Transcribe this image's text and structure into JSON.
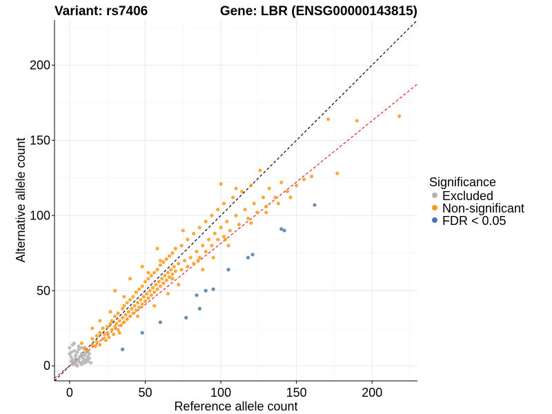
{
  "chart_data": {
    "type": "scatter",
    "title_left": "Variant: rs7406",
    "title_right": "Gene: LBR (ENSG00000143815)",
    "xlabel": "Reference allele count",
    "ylabel": "Alternative allele count",
    "xlim": [
      -10,
      230
    ],
    "ylim": [
      -10,
      230
    ],
    "xticks": [
      0,
      50,
      100,
      150,
      200
    ],
    "yticks": [
      0,
      50,
      100,
      150,
      200
    ],
    "grid": true,
    "reference_lines": [
      {
        "name": "identity",
        "slope": 1.0,
        "intercept": 0,
        "color": "#000000",
        "style": "dashed"
      },
      {
        "name": "fitted",
        "slope": 0.815,
        "intercept": 0,
        "color": "#e41a1c",
        "style": "dashed"
      }
    ],
    "legend": {
      "title": "Significance",
      "position": "right",
      "entries": [
        {
          "label": "Excluded",
          "color": "#b3b3b3"
        },
        {
          "label": "Non-significant",
          "color": "#ff9a1a"
        },
        {
          "label": "FDR < 0.05",
          "color": "#4a78a8"
        }
      ]
    },
    "series": [
      {
        "name": "Excluded",
        "color": "#b3b3b3",
        "points": [
          [
            0,
            8
          ],
          [
            0,
            12
          ],
          [
            1,
            3
          ],
          [
            1,
            6
          ],
          [
            2,
            1
          ],
          [
            2,
            4
          ],
          [
            3,
            10
          ],
          [
            3,
            2
          ],
          [
            4,
            5
          ],
          [
            4,
            7
          ],
          [
            5,
            0
          ],
          [
            5,
            3
          ],
          [
            5,
            9
          ],
          [
            6,
            4
          ],
          [
            6,
            11
          ],
          [
            7,
            2
          ],
          [
            7,
            6
          ],
          [
            8,
            8
          ],
          [
            8,
            1
          ],
          [
            9,
            3
          ],
          [
            9,
            5
          ],
          [
            10,
            7
          ],
          [
            10,
            2
          ],
          [
            11,
            4
          ],
          [
            11,
            9
          ],
          [
            12,
            6
          ],
          [
            12,
            3
          ],
          [
            13,
            5
          ],
          [
            14,
            2
          ],
          [
            3,
            15
          ],
          [
            6,
            13
          ],
          [
            2,
            14
          ],
          [
            8,
            12
          ],
          [
            10,
            11
          ],
          [
            4,
            1
          ],
          [
            13,
            8
          ],
          [
            1,
            9
          ],
          [
            12,
            10
          ]
        ]
      },
      {
        "name": "Non-significant",
        "color": "#ff9a1a",
        "points": [
          [
            10,
            12
          ],
          [
            12,
            10
          ],
          [
            15,
            14
          ],
          [
            15,
            18
          ],
          [
            17,
            13
          ],
          [
            18,
            20
          ],
          [
            18,
            16
          ],
          [
            20,
            14
          ],
          [
            20,
            22
          ],
          [
            22,
            18
          ],
          [
            22,
            25
          ],
          [
            23,
            21
          ],
          [
            24,
            17
          ],
          [
            25,
            26
          ],
          [
            25,
            22
          ],
          [
            26,
            19
          ],
          [
            27,
            28
          ],
          [
            28,
            24
          ],
          [
            28,
            30
          ],
          [
            29,
            21
          ],
          [
            30,
            26
          ],
          [
            30,
            33
          ],
          [
            31,
            28
          ],
          [
            32,
            24
          ],
          [
            32,
            35
          ],
          [
            33,
            30
          ],
          [
            34,
            27
          ],
          [
            35,
            38
          ],
          [
            35,
            32
          ],
          [
            36,
            29
          ],
          [
            36,
            40
          ],
          [
            37,
            34
          ],
          [
            38,
            31
          ],
          [
            38,
            42
          ],
          [
            39,
            36
          ],
          [
            40,
            33
          ],
          [
            40,
            44
          ],
          [
            41,
            38
          ],
          [
            42,
            35
          ],
          [
            42,
            46
          ],
          [
            43,
            40
          ],
          [
            44,
            37
          ],
          [
            44,
            49
          ],
          [
            45,
            42
          ],
          [
            46,
            39
          ],
          [
            46,
            51
          ],
          [
            47,
            44
          ],
          [
            48,
            41
          ],
          [
            48,
            53
          ],
          [
            49,
            46
          ],
          [
            50,
            43
          ],
          [
            50,
            56
          ],
          [
            51,
            48
          ],
          [
            52,
            45
          ],
          [
            52,
            58
          ],
          [
            53,
            50
          ],
          [
            54,
            47
          ],
          [
            54,
            60
          ],
          [
            55,
            52
          ],
          [
            56,
            49
          ],
          [
            56,
            62
          ],
          [
            57,
            54
          ],
          [
            58,
            51
          ],
          [
            58,
            64
          ],
          [
            59,
            56
          ],
          [
            60,
            53
          ],
          [
            60,
            67
          ],
          [
            61,
            58
          ],
          [
            62,
            55
          ],
          [
            62,
            69
          ],
          [
            63,
            60
          ],
          [
            64,
            57
          ],
          [
            64,
            71
          ],
          [
            65,
            62
          ],
          [
            66,
            59
          ],
          [
            66,
            73
          ],
          [
            67,
            64
          ],
          [
            68,
            61
          ],
          [
            68,
            75
          ],
          [
            69,
            66
          ],
          [
            70,
            63
          ],
          [
            70,
            78
          ],
          [
            72,
            68
          ],
          [
            74,
            64
          ],
          [
            74,
            80
          ],
          [
            76,
            70
          ],
          [
            78,
            66
          ],
          [
            78,
            84
          ],
          [
            80,
            72
          ],
          [
            82,
            68
          ],
          [
            82,
            88
          ],
          [
            84,
            76
          ],
          [
            86,
            72
          ],
          [
            86,
            92
          ],
          [
            88,
            80
          ],
          [
            90,
            76
          ],
          [
            90,
            96
          ],
          [
            92,
            84
          ],
          [
            94,
            80
          ],
          [
            94,
            100
          ],
          [
            96,
            88
          ],
          [
            98,
            84
          ],
          [
            98,
            104
          ],
          [
            100,
            92
          ],
          [
            102,
            86
          ],
          [
            102,
            108
          ],
          [
            104,
            96
          ],
          [
            106,
            90
          ],
          [
            108,
            112
          ],
          [
            110,
            100
          ],
          [
            112,
            94
          ],
          [
            114,
            116
          ],
          [
            116,
            104
          ],
          [
            118,
            98
          ],
          [
            120,
            120
          ],
          [
            122,
            108
          ],
          [
            124,
            102
          ],
          [
            126,
            130
          ],
          [
            128,
            112
          ],
          [
            130,
            106
          ],
          [
            132,
            118
          ],
          [
            136,
            112
          ],
          [
            140,
            122
          ],
          [
            144,
            116
          ],
          [
            150,
            120
          ],
          [
            155,
            124
          ],
          [
            171,
            164
          ],
          [
            177,
            128
          ],
          [
            190,
            163
          ],
          [
            218,
            166
          ],
          [
            8,
            15
          ],
          [
            30,
            50
          ],
          [
            40,
            58
          ],
          [
            58,
            78
          ],
          [
            48,
            66
          ],
          [
            60,
            70
          ],
          [
            75,
            90
          ],
          [
            100,
            121
          ],
          [
            103,
            84
          ],
          [
            27,
            36
          ],
          [
            45,
            33
          ],
          [
            56,
            40
          ],
          [
            36,
            46
          ],
          [
            52,
            62
          ],
          [
            68,
            58
          ],
          [
            85,
            70
          ],
          [
            110,
            118
          ],
          [
            120,
            95
          ],
          [
            20,
            30
          ],
          [
            33,
            22
          ],
          [
            15,
            25
          ],
          [
            65,
            48
          ],
          [
            72,
            54
          ],
          [
            88,
            64
          ],
          [
            95,
            72
          ],
          [
            105,
            80
          ],
          [
            130,
            102
          ],
          [
            138,
            108
          ],
          [
            146,
            112
          ],
          [
            160,
            126
          ]
        ]
      },
      {
        "name": "FDR < 0.05",
        "color": "#4a78a8",
        "points": [
          [
            35,
            11
          ],
          [
            48,
            22
          ],
          [
            60,
            29
          ],
          [
            77,
            32
          ],
          [
            84,
            47
          ],
          [
            86,
            38
          ],
          [
            90,
            50
          ],
          [
            95,
            51
          ],
          [
            105,
            64
          ],
          [
            118,
            72
          ],
          [
            121,
            74
          ],
          [
            140,
            91
          ],
          [
            142,
            90
          ],
          [
            162,
            107
          ]
        ]
      }
    ]
  }
}
